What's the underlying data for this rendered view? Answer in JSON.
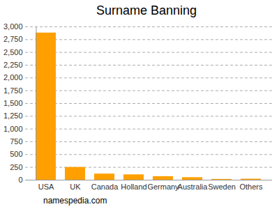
{
  "chart_data": {
    "type": "bar",
    "title": "Surname Banning",
    "categories": [
      "USA",
      "UK",
      "Canada",
      "Holland",
      "Germany",
      "Australia",
      "Sweden",
      "Others"
    ],
    "values": [
      2880,
      250,
      120,
      105,
      70,
      50,
      15,
      20
    ],
    "color": "#ffa000",
    "ylim": [
      0,
      3000
    ],
    "yticks": [
      0,
      250,
      500,
      750,
      1000,
      1250,
      1500,
      1750,
      2000,
      2250,
      2500,
      2750,
      3000
    ],
    "grid": true,
    "caption": "namespedia.com"
  }
}
